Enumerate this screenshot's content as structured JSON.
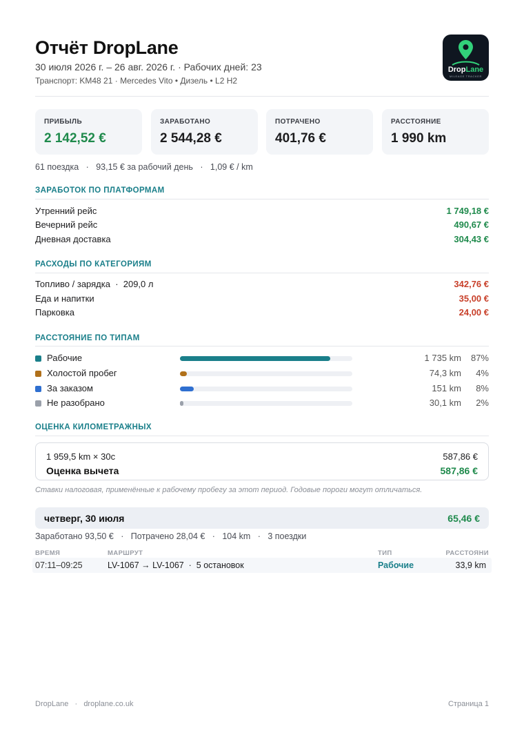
{
  "header": {
    "title": "Отчёт DropLane",
    "period": "30 июля 2026 г. – 26 авг. 2026 г. · Рабочих дней: 23",
    "vehicle": "Транспорт: KM48 21 · Mercedes Vito • Дизель • L2 H2",
    "logo": {
      "word_a": "Drop",
      "word_b": "Lane",
      "tagline": "MILEAGE TRACKER",
      "pin_color": "#32d27a"
    }
  },
  "stats": [
    {
      "label": "ПРИБЫЛЬ",
      "value": "2 142,52 €"
    },
    {
      "label": "ЗАРАБОТАНО",
      "value": "2 544,28 €"
    },
    {
      "label": "ПОТРАЧЕНО",
      "value": "401,76 €"
    },
    {
      "label": "РАССТОЯНИЕ",
      "value": "1 990 km"
    }
  ],
  "summary_line": "61 поездка   ·   93,15 € за рабочий день   ·   1,09 € / km",
  "earnings": {
    "title": "ЗАРАБОТОК ПО ПЛАТФОРМАМ",
    "items": [
      {
        "label": "Утренний рейс",
        "value": "1 749,18 €"
      },
      {
        "label": "Вечерний рейс",
        "value": "490,67 €"
      },
      {
        "label": "Дневная доставка",
        "value": "304,43 €"
      }
    ]
  },
  "expenses": {
    "title": "РАСХОДЫ ПО КАТЕГОРИЯМ",
    "items": [
      {
        "label": "Топливо / зарядка  ·  209,0 л",
        "value": "342,76 €"
      },
      {
        "label": "Еда и напитки",
        "value": "35,00 €"
      },
      {
        "label": "Парковка",
        "value": "24,00 €"
      }
    ]
  },
  "distance": {
    "title": "РАССТОЯНИЕ ПО ТИПАМ",
    "items": [
      {
        "label": "Рабочие",
        "km": "1 735 km",
        "pct": "87%",
        "share": 0.87,
        "color": "#1a7f8a"
      },
      {
        "label": "Холостой пробег",
        "km": "74,3 km",
        "pct": "4%",
        "share": 0.04,
        "color": "#b0701a"
      },
      {
        "label": "За заказом",
        "km": "151 km",
        "pct": "8%",
        "share": 0.08,
        "color": "#2f6fd0"
      },
      {
        "label": "Не разобрано",
        "km": "30,1 km",
        "pct": "2%",
        "share": 0.02,
        "color": "#9aa0aa"
      }
    ]
  },
  "mileage": {
    "title": "ОЦЕНКА КИЛОМЕТРАЖНЫХ",
    "formula": "1 959,5 km × 30c",
    "formula_value": "587,86 €",
    "estimate_label": "Оценка вычета",
    "estimate_value": "587,86 €",
    "note": "Ставки налоговая, применённые к рабочему пробегу за этот период. Годовые пороги могут отличаться."
  },
  "day": {
    "date": "четверг, 30 июля",
    "total": "65,46 €",
    "meta": "Заработано 93,50 €   ·   Потрачено 28,04 €   ·   104 km   ·   3 поездки",
    "columns": {
      "time": "ВРЕМЯ",
      "route": "МАРШРУТ",
      "type": "ТИП",
      "distance": "РАССТОЯНИ"
    },
    "trips": [
      {
        "time": "07:11–09:25",
        "route": "LV-1067 → LV-1067  ·  5 остановок",
        "type": "Рабочие",
        "distance": "33,9 km"
      }
    ]
  },
  "footer": {
    "left": "DropLane   ·   droplane.co.uk",
    "right": "Страница 1"
  }
}
